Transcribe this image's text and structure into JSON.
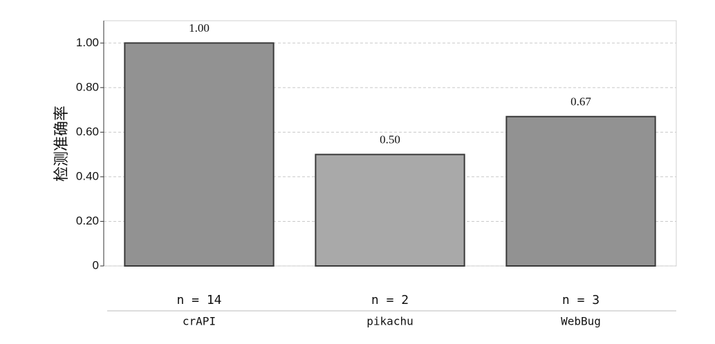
{
  "chart_data": {
    "type": "bar",
    "y_label": "检测准确率",
    "categories": [
      "crAPI",
      "pikachu",
      "WebBug"
    ],
    "values": [
      1.0,
      0.5,
      0.67
    ],
    "value_labels": [
      "1.00",
      "0.50",
      "0.67"
    ],
    "colors": [
      "#929292",
      "#a9a9a9",
      "#929292"
    ],
    "annotations": [
      "n = 14",
      "n = 2",
      "n = 3"
    ],
    "ylim": [
      0,
      1.1
    ],
    "yticks": [
      0,
      {
        "value": 0.2,
        "label": "0.20"
      },
      {
        "value": 0.4,
        "label": "0.40"
      },
      {
        "value": 0.6,
        "label": "0.60"
      },
      {
        "value": 0.8,
        "label": "0.80"
      },
      {
        "value": 1.0,
        "label": "1.00"
      }
    ],
    "grid": true
  }
}
